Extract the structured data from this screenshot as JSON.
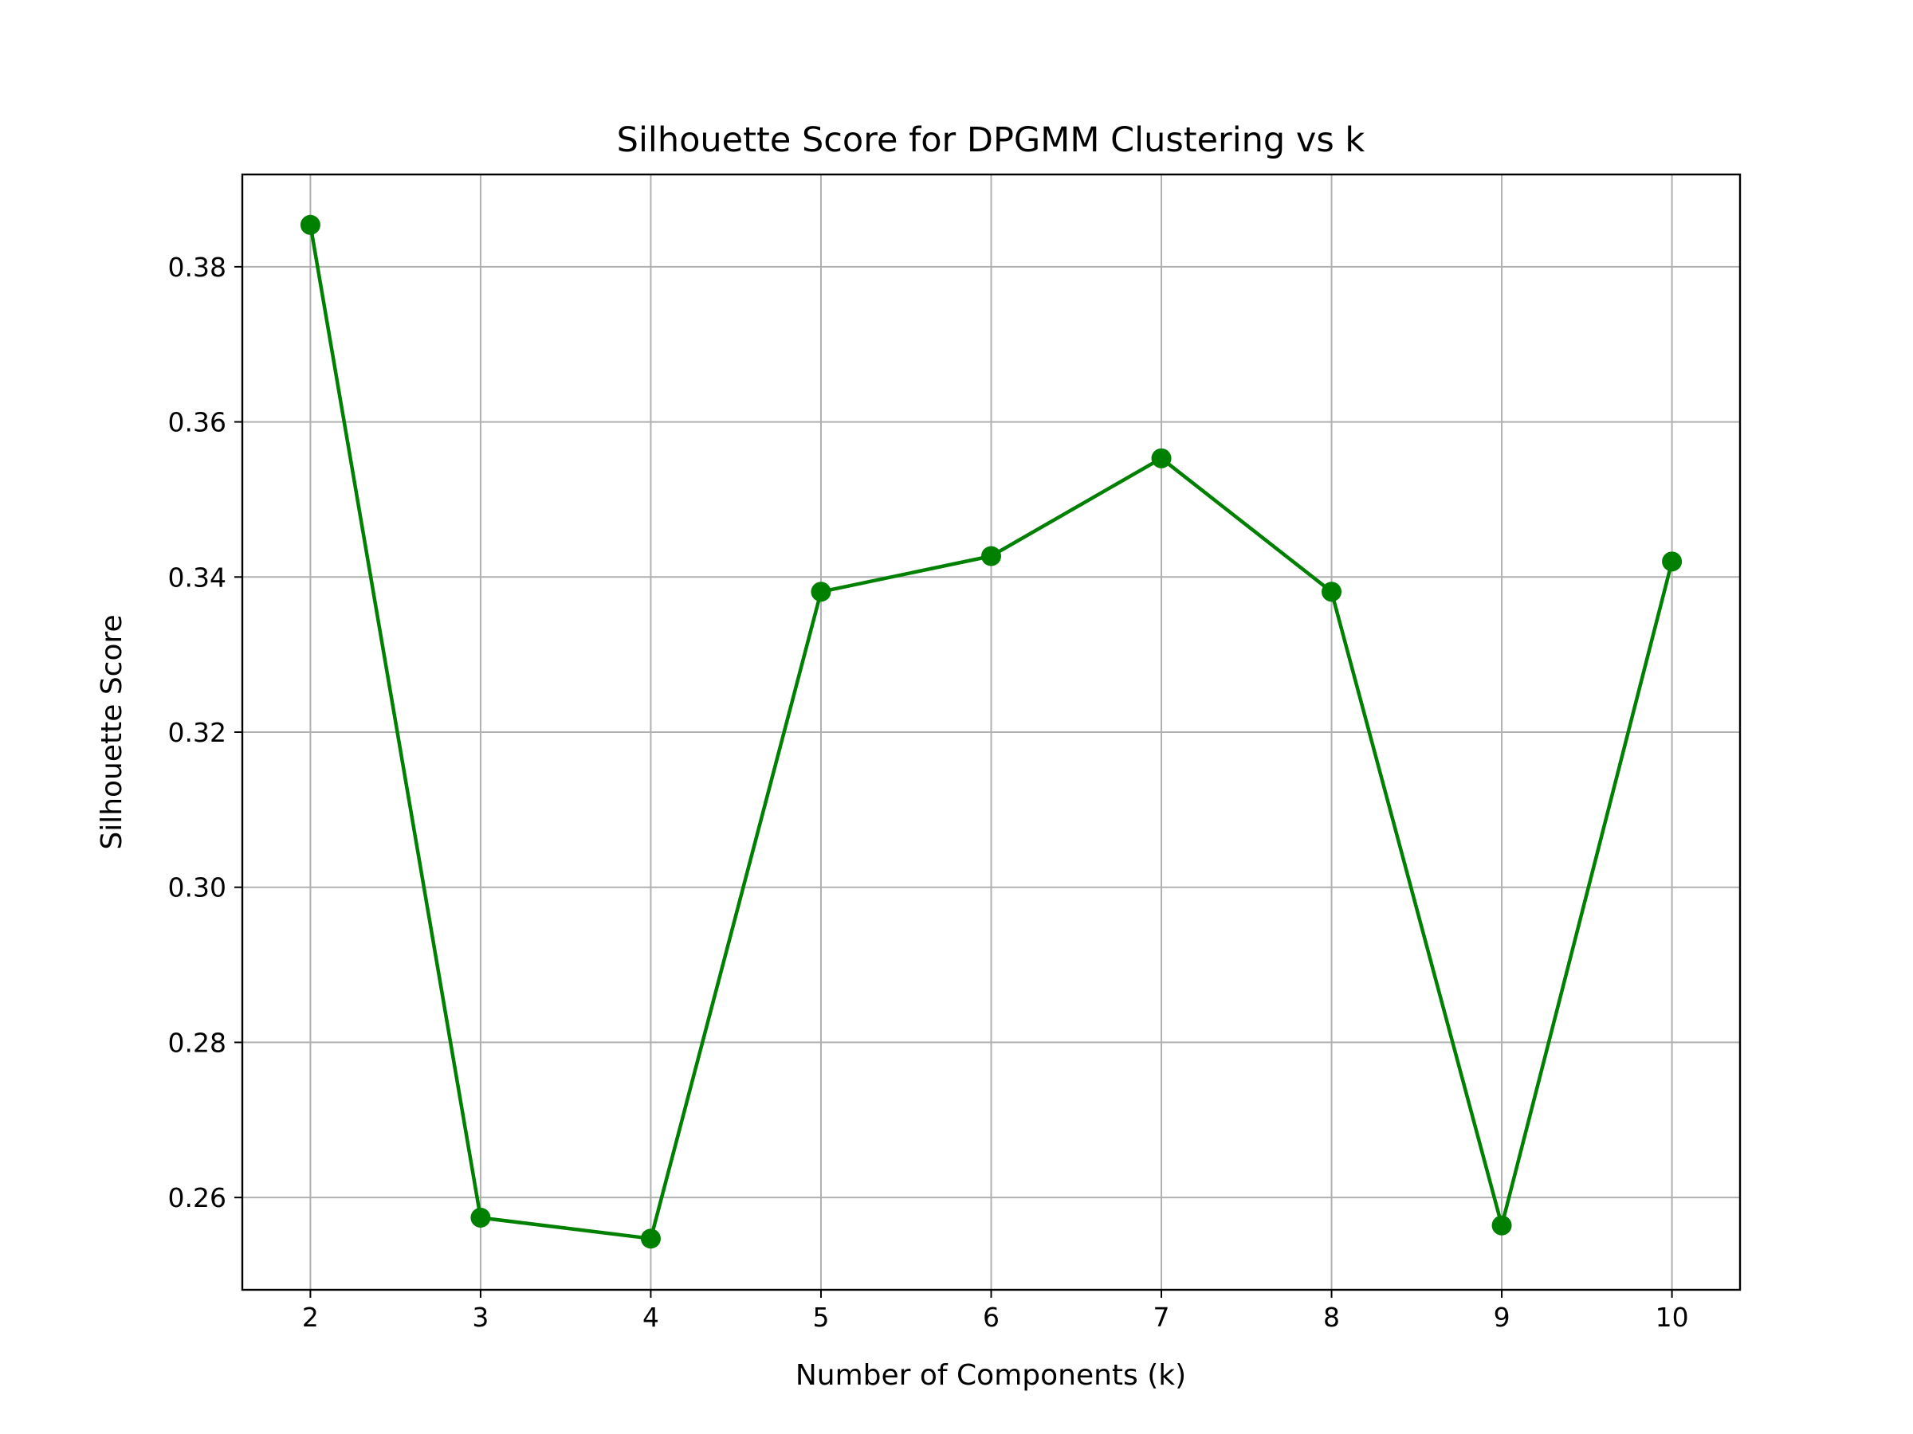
{
  "chart_data": {
    "type": "line",
    "title": "Silhouette Score for DPGMM Clustering vs k",
    "xlabel": "Number of Components (k)",
    "ylabel": "Silhouette Score",
    "x": [
      2,
      3,
      4,
      5,
      6,
      7,
      8,
      9,
      10
    ],
    "series": [
      {
        "values": [
          0.3854,
          0.2574,
          0.2547,
          0.3381,
          0.3427,
          0.3553,
          0.3381,
          0.2564,
          0.342
        ],
        "color": "#008000",
        "marker": "circle"
      }
    ],
    "xlim": [
      1.6,
      10.4
    ],
    "ylim": [
      0.2481,
      0.3919
    ],
    "xticks": [
      "2",
      "3",
      "4",
      "5",
      "6",
      "7",
      "8",
      "9",
      "10"
    ],
    "yticks": [
      "0.26",
      "0.28",
      "0.30",
      "0.32",
      "0.34",
      "0.36",
      "0.38"
    ],
    "grid": true,
    "legend": false
  }
}
